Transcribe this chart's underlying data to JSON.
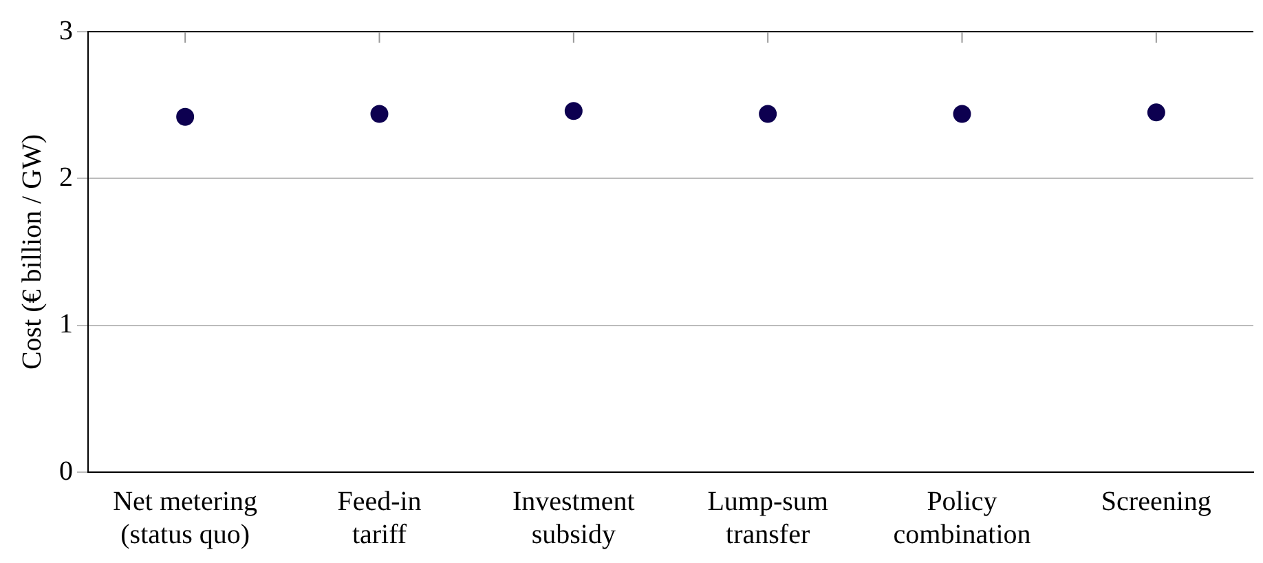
{
  "chart_data": {
    "type": "scatter",
    "ylabel": "Cost (€ billion / GW)",
    "categories": [
      "Net metering\n(status quo)",
      "Feed-in\ntariff",
      "Investment\nsubsidy",
      "Lump-sum\ntransfer",
      "Policy\ncombination",
      "Screening"
    ],
    "series": [
      {
        "color": "#0d0050",
        "values": [
          2.42,
          2.44,
          2.46,
          2.44,
          2.44,
          2.45
        ]
      }
    ],
    "ylim": [
      0,
      3
    ],
    "yticks": [
      0,
      1,
      2,
      3
    ],
    "grid": "y",
    "marker": "circle"
  }
}
